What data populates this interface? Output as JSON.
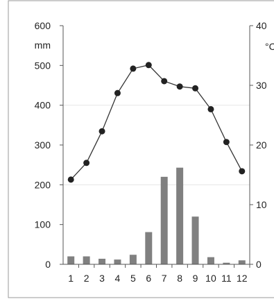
{
  "chart_data": {
    "type": "bar+line",
    "categories": [
      "1",
      "2",
      "3",
      "4",
      "5",
      "6",
      "7",
      "8",
      "9",
      "10",
      "11",
      "12"
    ],
    "series": [
      {
        "type": "bar",
        "axis": "left",
        "values": [
          20,
          20,
          14,
          12,
          24,
          81,
          220,
          243,
          120,
          18,
          4,
          10
        ]
      },
      {
        "type": "line",
        "axis": "right",
        "values": [
          14.2,
          17,
          22.3,
          28.7,
          32.8,
          33.4,
          30.7,
          29.8,
          29.5,
          26,
          20.5,
          15.6
        ]
      }
    ],
    "left_axis": {
      "unit": "mm",
      "ylim": [
        0,
        600
      ],
      "ticks": [
        "0",
        "100",
        "200",
        "300",
        "400",
        "500",
        "600"
      ]
    },
    "right_axis": {
      "unit": "°C",
      "ylim": [
        0,
        40
      ],
      "ticks": [
        "0",
        "10",
        "20",
        "30",
        "40"
      ]
    },
    "gridlines": [
      200,
      400
    ],
    "colors": {
      "bar": "#808080",
      "line": "#333333",
      "marker": "#222222",
      "grid": "#e6e6e6",
      "axis": "#555555",
      "border": "#999999"
    }
  }
}
